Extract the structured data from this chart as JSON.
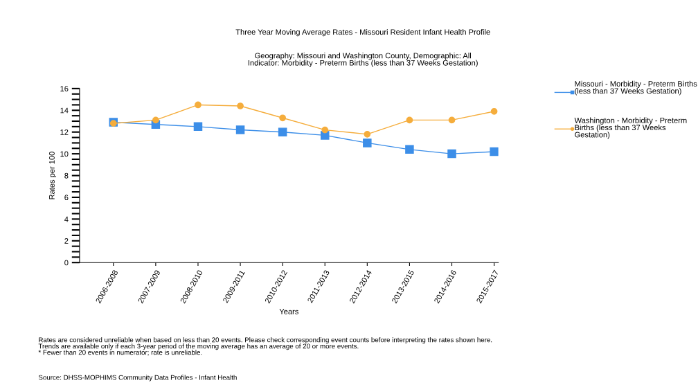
{
  "chart_data": {
    "type": "line",
    "title": "Three Year Moving Average Rates - Missouri Resident Infant Health Profile",
    "subtitle": "Geography: Missouri and Washington County, Demographic: All\nIndicator: Morbidity - Preterm Births (less than 37 Weeks Gestation)",
    "xlabel": "Years",
    "ylabel": "Rates per 100",
    "categories": [
      "2006-2008",
      "2007-2009",
      "2008-2010",
      "2009-2011",
      "2010-2012",
      "2011-2013",
      "2012-2014",
      "2013-2015",
      "2014-2016",
      "2015-2017"
    ],
    "series": [
      {
        "name": "Missouri - Morbidity - Preterm Births (less than 37 Weeks Gestation)",
        "color": "#3c8ee8",
        "marker": "square",
        "values": [
          12.9,
          12.7,
          12.5,
          12.2,
          12.0,
          11.7,
          11.0,
          10.4,
          10.0,
          10.2
        ]
      },
      {
        "name": "Washington - Morbidity - Preterm Births (less than 37 Weeks Gestation)",
        "color": "#f5ad3c",
        "marker": "circle",
        "values": [
          12.8,
          13.1,
          14.5,
          14.4,
          13.3,
          12.2,
          11.8,
          13.1,
          13.1,
          13.9
        ]
      }
    ],
    "ylim": [
      0,
      16
    ],
    "yticks": [
      0,
      {
        "value": 0.5,
        "label": null
      },
      {
        "value": 1,
        "label": null
      },
      {
        "value": 1.5,
        "label": null
      },
      2,
      {
        "value": 2.5,
        "label": null
      },
      {
        "value": 3,
        "label": null
      },
      {
        "value": 3.5,
        "label": null
      },
      4,
      {
        "value": 4.5,
        "label": null
      },
      {
        "value": 5,
        "label": null
      },
      {
        "value": 5.5,
        "label": null
      },
      6,
      {
        "value": 6.5,
        "label": null
      },
      {
        "value": 7,
        "label": null
      },
      {
        "value": 7.5,
        "label": null
      },
      8,
      {
        "value": 8.5,
        "label": null
      },
      {
        "value": 9,
        "label": null
      },
      {
        "value": 9.5,
        "label": null
      },
      10,
      {
        "value": 10.5,
        "label": null
      },
      {
        "value": 11,
        "label": null
      },
      {
        "value": 11.5,
        "label": null
      },
      12,
      {
        "value": 12.5,
        "label": null
      },
      {
        "value": 13,
        "label": null
      },
      {
        "value": 13.5,
        "label": null
      },
      14,
      {
        "value": 14.5,
        "label": null
      },
      {
        "value": 15,
        "label": null
      },
      {
        "value": 15.5,
        "label": null
      },
      16
    ],
    "grid": false,
    "legend": "top right",
    "line_style": "solid",
    "annotations": [
      "Rates are considered unreliable when based on less than 20 events. Please check corresponding event counts before interpreting the rates shown here.\nTrends are available only if each 3-year period of the moving average has an average of 20 or more events.\n* Fewer than 20 events in numerator; rate is unreliable.",
      "Source: DHSS-MOPHIMS Community Data Profiles - Infant Health"
    ]
  }
}
